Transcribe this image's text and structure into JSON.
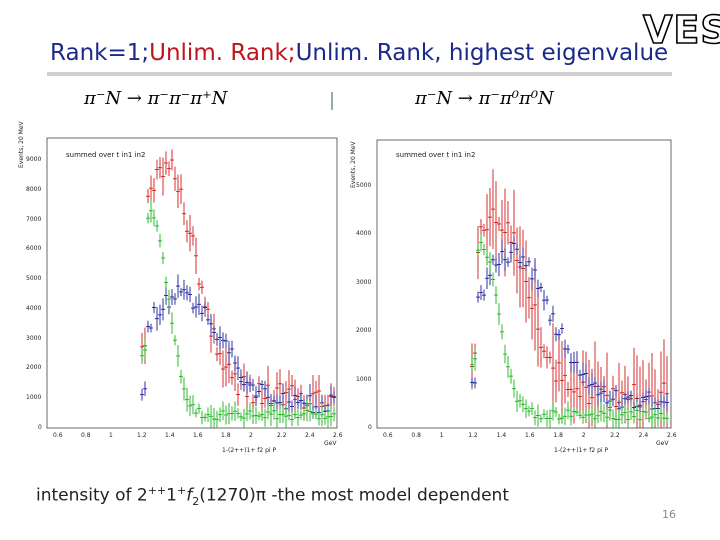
{
  "title": {
    "part1": "Rank=1;",
    "part2": "Unlim. Rank;",
    "part3": "Unlim. Rank, highest eigenvalue"
  },
  "logo": "VES",
  "colors": {
    "title_blue": "#1a2a8a",
    "title_red": "#c0141c",
    "red": "#d01818",
    "blue": "#1c1c9a",
    "green": "#18b418"
  },
  "reactions": {
    "left": "π⁻N → π⁻π⁻π⁺N",
    "right": "π⁻N → π⁻π⁰π⁰N"
  },
  "plots": [
    {
      "label": "summed over t in1 in2",
      "ylabel": "Events, 20 MeV",
      "xlabel": "1-(2++)1+ f2 pi P",
      "xunit": "GeV",
      "yticks": [
        "0",
        "1000",
        "2000",
        "3000",
        "4000",
        "5000",
        "6000",
        "7000",
        "8000",
        "9000"
      ],
      "xticks": [
        "0.6",
        "0.8",
        "1",
        "1.2",
        "1.4",
        "1.6",
        "1.8",
        "2",
        "2.2",
        "2.4",
        "2.6"
      ]
    },
    {
      "label": "summed over t in1 in2",
      "ylabel": "Events, 20 MeV",
      "xlabel": "1-(2++)1+ f2 pi P",
      "xunit": "GeV",
      "yticks": [
        "0",
        "1000",
        "2000",
        "3000",
        "4000",
        "5000"
      ],
      "xticks": [
        "0.6",
        "0.8",
        "1",
        "1.2",
        "1.4",
        "1.6",
        "1.8",
        "2",
        "2.2",
        "2.4",
        "2.6"
      ]
    }
  ],
  "footer": {
    "prefix": "intensity of 2",
    "sup1": "++",
    "mid": "1",
    "sup2": "+",
    "particle": "f",
    "sub": "2",
    "mass": "(1270)π",
    "suffix": " -the most  model dependent"
  },
  "page_number": "16"
}
